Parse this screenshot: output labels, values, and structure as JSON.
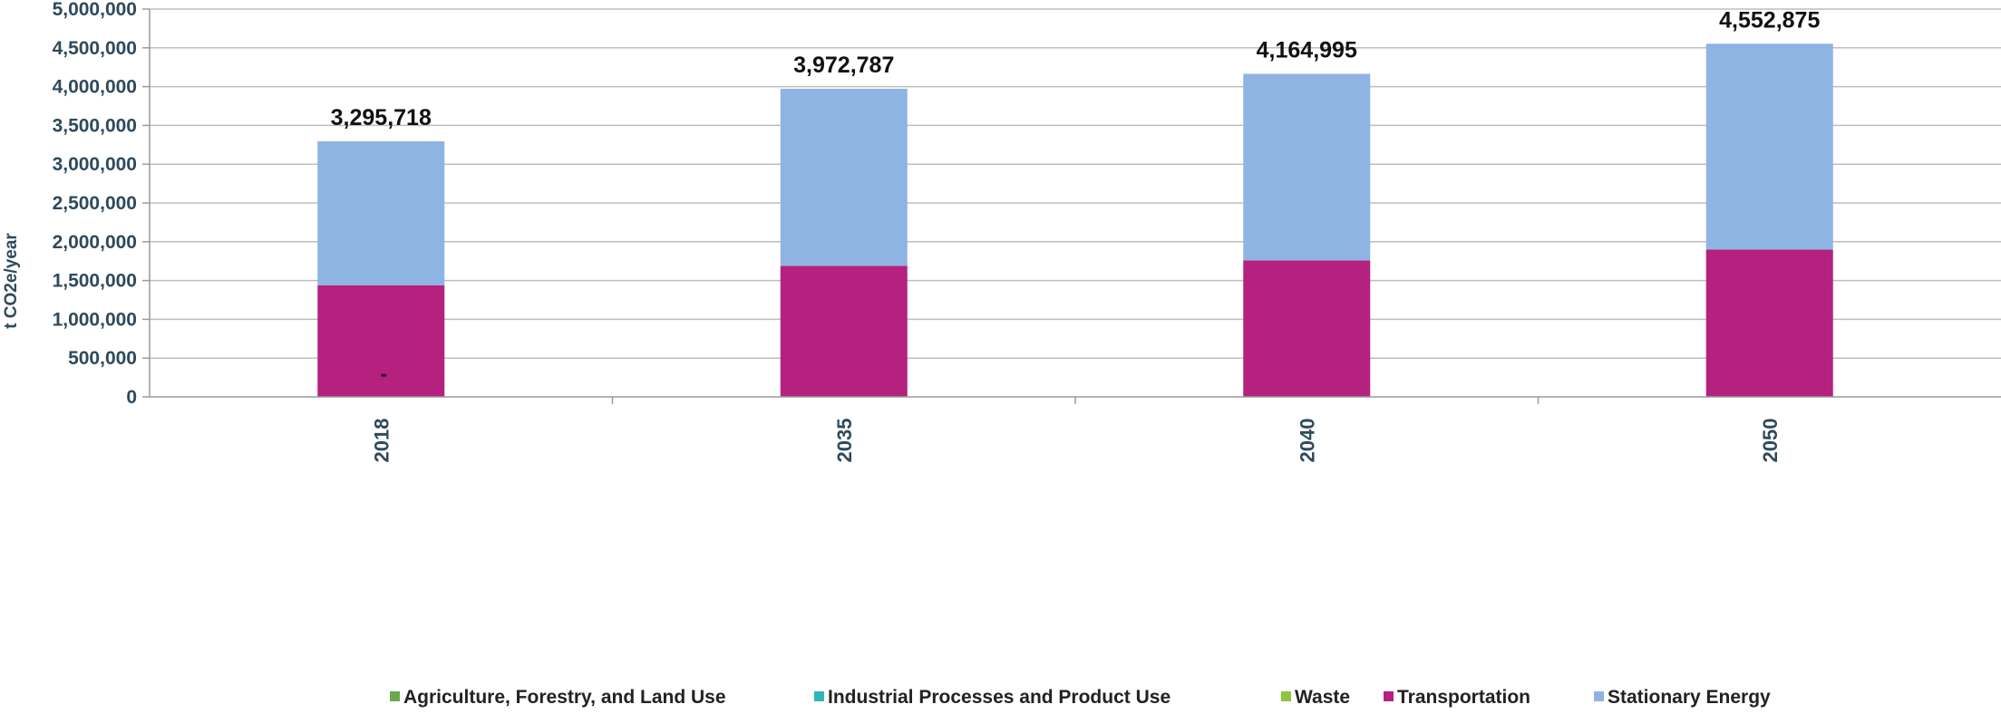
{
  "chart_data": {
    "type": "bar",
    "stacked": true,
    "categories": [
      "2018",
      "2035",
      "2040",
      "2050"
    ],
    "ylabel": "t CO2e/year",
    "ylim": [
      0,
      5000000
    ],
    "yticks": [
      "0",
      "500,000",
      "1,000,000",
      "1,500,000",
      "2,000,000",
      "2,500,000",
      "3,000,000",
      "3,500,000",
      "4,000,000",
      "4,500,000",
      "5,000,000"
    ],
    "grid": true,
    "legend_position": "bottom",
    "series": [
      {
        "name": "Agriculture, Forestry, and Land Use",
        "color": "#6aa84f",
        "values": [
          0,
          0,
          0,
          0
        ]
      },
      {
        "name": "Industrial Processes and Product Use",
        "color": "#33b5b5",
        "values": [
          0,
          0,
          0,
          0
        ]
      },
      {
        "name": "Waste",
        "color": "#8cc63f",
        "values": [
          0,
          0,
          0,
          0
        ]
      },
      {
        "name": "Transportation",
        "color": "#b5217e",
        "values": [
          1440000,
          1690000,
          1760000,
          1900000
        ]
      },
      {
        "name": "Stationary Energy",
        "color": "#8eb4e3",
        "values": [
          1855718,
          2282787,
          2404995,
          2652875
        ]
      }
    ],
    "totals": [
      "3,295,718",
      "3,972,787",
      "4,164,995",
      "4,552,875"
    ],
    "annotations": [
      {
        "category": "2018",
        "text": "-"
      }
    ]
  }
}
